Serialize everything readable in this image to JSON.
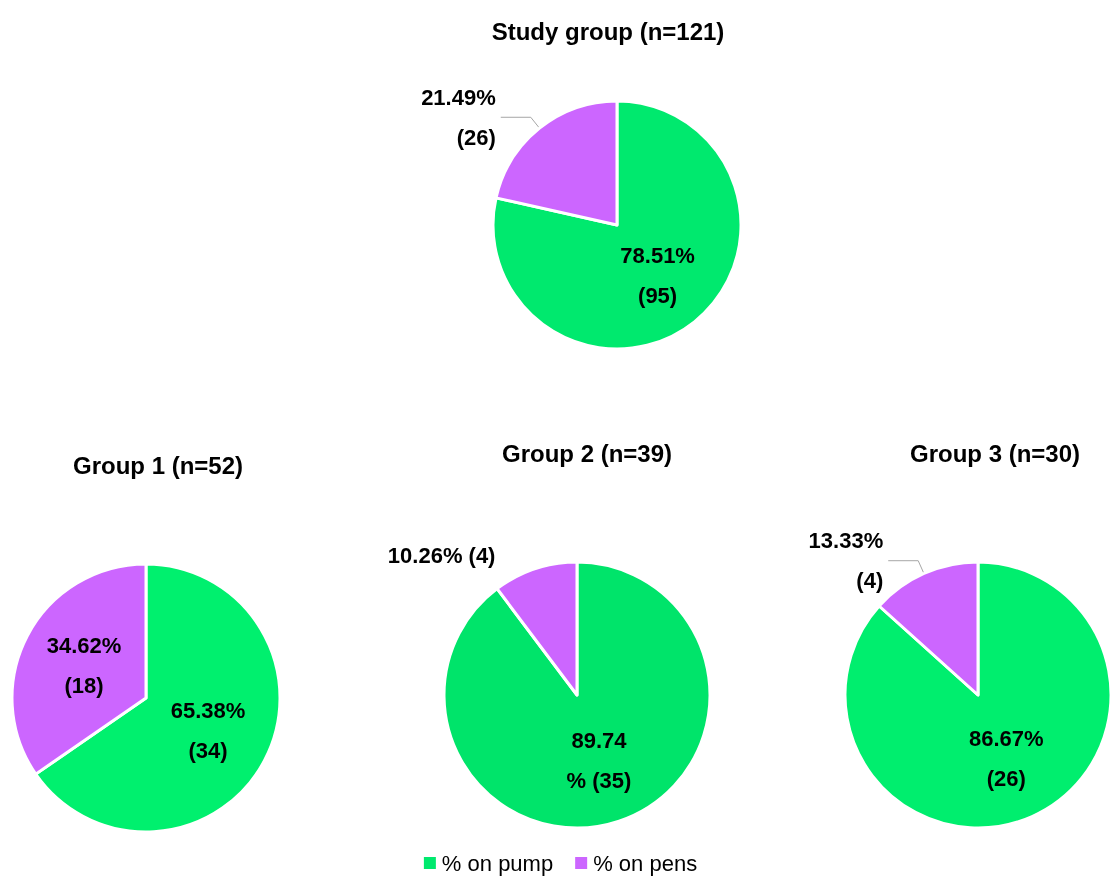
{
  "chart_data": [
    {
      "type": "pie",
      "title": "Study group (n=121)",
      "categories": [
        "% on pump",
        "% on pens"
      ],
      "values": [
        95,
        26
      ],
      "colors": [
        "#00e96e",
        "#cc66ff"
      ],
      "value_labels": [
        "78.51%\n(95)",
        "21.49%\n(26)"
      ],
      "legend": "bottom"
    },
    {
      "type": "pie",
      "title": "Group 1 (n=52)",
      "categories": [
        null,
        null
      ],
      "values": [
        34,
        18
      ],
      "colors": [
        "#00f06e",
        "#cc66ff"
      ],
      "value_labels": [
        "65.38%\n(34)",
        "34.62%\n(18)"
      ]
    },
    {
      "type": "pie",
      "title": "Group 2 (n=39)",
      "categories": [
        null,
        null
      ],
      "values": [
        35,
        4
      ],
      "colors": [
        "#00e46a",
        "#cc66ff"
      ],
      "value_labels": [
        "89.74\n% (35)",
        "10.26% (4)"
      ]
    },
    {
      "type": "pie",
      "title": "Group 3 (n=30)",
      "categories": [
        null,
        null
      ],
      "values": [
        26,
        4
      ],
      "colors": [
        "#00ee6e",
        "#cc66ff"
      ],
      "value_labels": [
        "86.67%\n(26)",
        "13.33%\n(4)"
      ]
    }
  ]
}
